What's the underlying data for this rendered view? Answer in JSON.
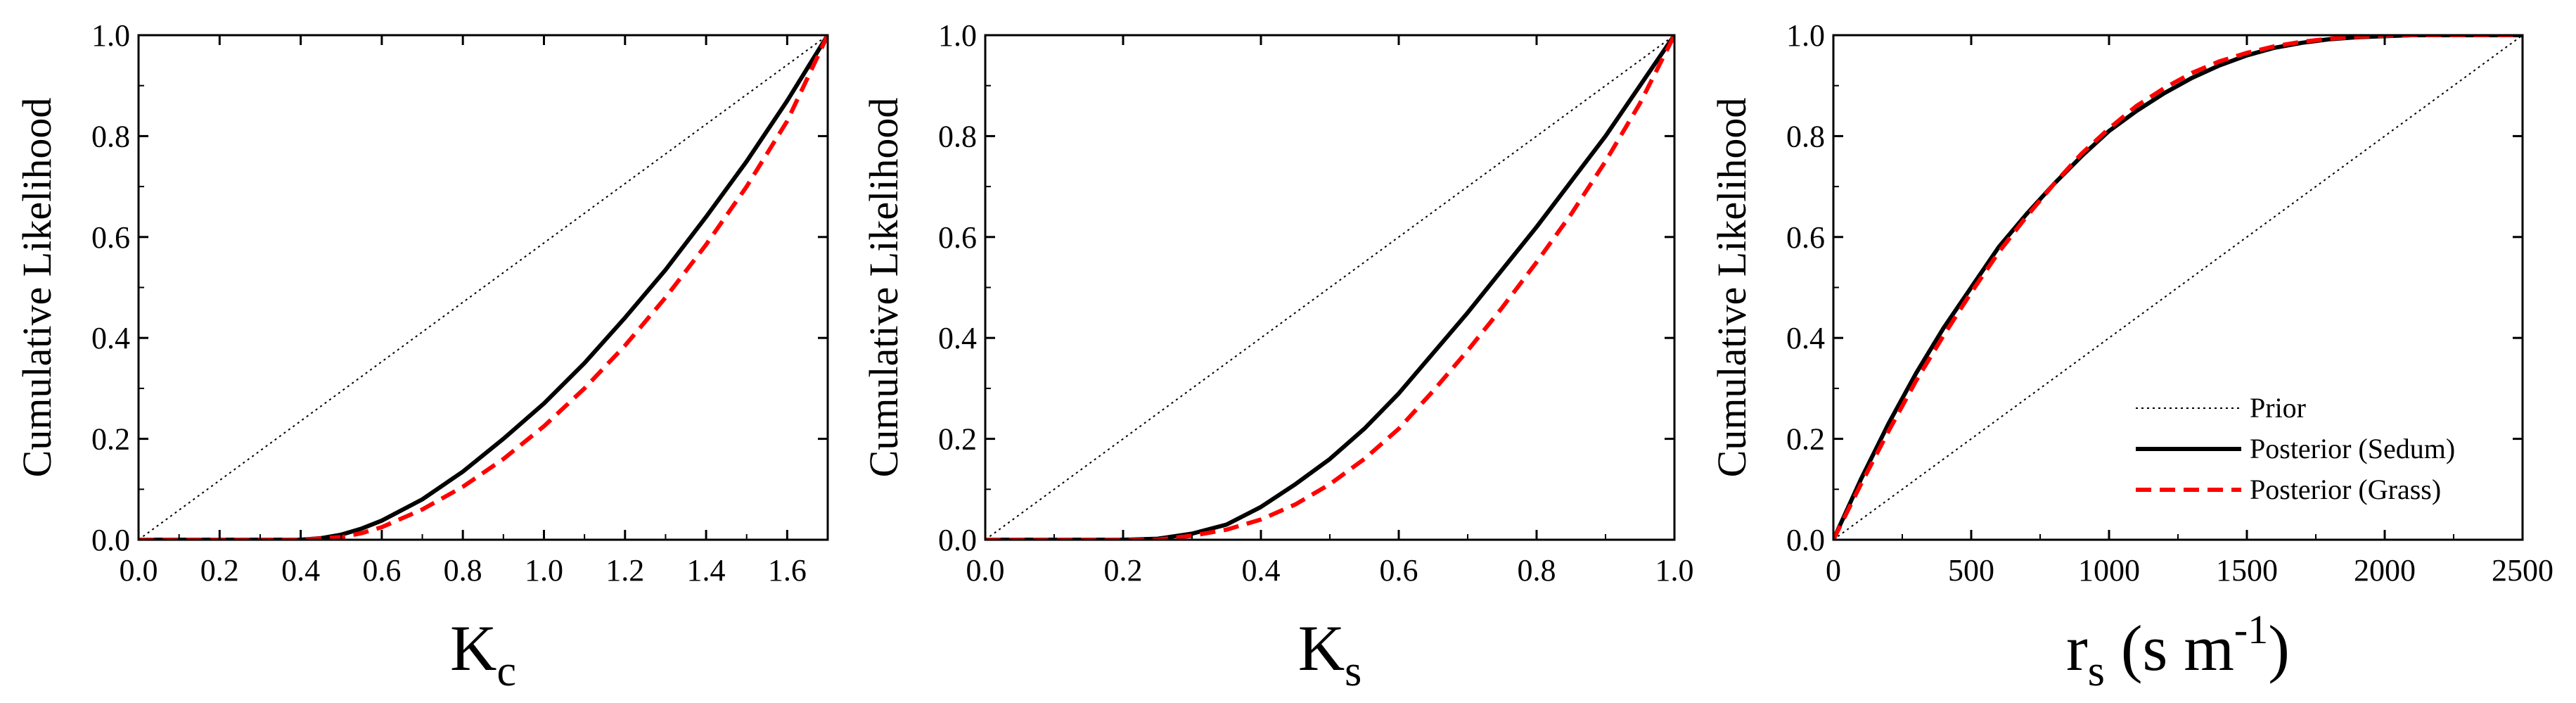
{
  "colors": {
    "prior": "#000000",
    "sedum": "#000000",
    "grass": "#ff0000",
    "background": "#ffffff"
  },
  "chart_data": [
    {
      "type": "line",
      "ylabel": "Cumulative Likelihood",
      "xlabel_main": "K",
      "xlabel_sub": "c",
      "xlim": [
        0,
        1.7
      ],
      "ylim": [
        0,
        1
      ],
      "xticks": [
        "0.0",
        "0.2",
        "0.4",
        "0.6",
        "0.8",
        "1.0",
        "1.2",
        "1.4",
        "1.6"
      ],
      "yticks": [
        "0.0",
        "0.2",
        "0.4",
        "0.6",
        "0.8",
        "1.0"
      ],
      "grid": false,
      "series": [
        {
          "name": "Prior",
          "style": "dotted",
          "x": [
            0,
            1.7
          ],
          "y": [
            0,
            1
          ]
        },
        {
          "name": "Posterior (Sedum)",
          "style": "solid",
          "x": [
            0,
            0.2,
            0.4,
            0.45,
            0.5,
            0.55,
            0.6,
            0.7,
            0.8,
            0.9,
            1.0,
            1.1,
            1.2,
            1.3,
            1.4,
            1.5,
            1.6,
            1.7
          ],
          "y": [
            0,
            0,
            0,
            0.003,
            0.01,
            0.022,
            0.038,
            0.08,
            0.135,
            0.2,
            0.27,
            0.35,
            0.44,
            0.535,
            0.64,
            0.75,
            0.87,
            1.0
          ]
        },
        {
          "name": "Posterior (Grass)",
          "style": "dashed",
          "x": [
            0,
            0.2,
            0.4,
            0.5,
            0.55,
            0.6,
            0.7,
            0.8,
            0.9,
            1.0,
            1.1,
            1.2,
            1.3,
            1.4,
            1.5,
            1.6,
            1.7
          ],
          "y": [
            0,
            0,
            0,
            0.005,
            0.013,
            0.025,
            0.06,
            0.105,
            0.16,
            0.225,
            0.3,
            0.385,
            0.48,
            0.585,
            0.7,
            0.83,
            1.0
          ]
        }
      ]
    },
    {
      "type": "line",
      "ylabel": "Cumulative Likelihood",
      "xlabel_main": "K",
      "xlabel_sub": "s",
      "xlim": [
        0,
        1
      ],
      "ylim": [
        0,
        1
      ],
      "xticks": [
        "0.0",
        "0.2",
        "0.4",
        "0.6",
        "0.8",
        "1.0"
      ],
      "yticks": [
        "0.0",
        "0.2",
        "0.4",
        "0.6",
        "0.8",
        "1.0"
      ],
      "grid": false,
      "series": [
        {
          "name": "Prior",
          "style": "dotted",
          "x": [
            0,
            1
          ],
          "y": [
            0,
            1
          ]
        },
        {
          "name": "Posterior (Sedum)",
          "style": "solid",
          "x": [
            0,
            0.2,
            0.25,
            0.3,
            0.35,
            0.4,
            0.45,
            0.5,
            0.55,
            0.6,
            0.65,
            0.7,
            0.75,
            0.8,
            0.85,
            0.9,
            0.95,
            1.0
          ],
          "y": [
            0,
            0,
            0.002,
            0.012,
            0.03,
            0.065,
            0.11,
            0.16,
            0.22,
            0.29,
            0.37,
            0.45,
            0.535,
            0.62,
            0.71,
            0.8,
            0.9,
            1.0
          ]
        },
        {
          "name": "Posterior (Grass)",
          "style": "dashed",
          "x": [
            0,
            0.25,
            0.3,
            0.35,
            0.4,
            0.45,
            0.5,
            0.55,
            0.6,
            0.65,
            0.7,
            0.75,
            0.8,
            0.85,
            0.9,
            0.95,
            1.0
          ],
          "y": [
            0,
            0,
            0.008,
            0.02,
            0.04,
            0.07,
            0.11,
            0.16,
            0.22,
            0.295,
            0.375,
            0.46,
            0.55,
            0.645,
            0.75,
            0.865,
            1.0
          ]
        }
      ]
    },
    {
      "type": "line",
      "ylabel": "Cumulative Likelihood",
      "xlabel_main": "r",
      "xlabel_sub": "s",
      "xlabel_rest": " (s m",
      "xlabel_sup": "-1",
      "xlabel_end": ")",
      "xlim": [
        0,
        2500
      ],
      "ylim": [
        0,
        1
      ],
      "xticks": [
        "0",
        "500",
        "1000",
        "1500",
        "2000",
        "2500"
      ],
      "yticks": [
        "0.0",
        "0.2",
        "0.4",
        "0.6",
        "0.8",
        "1.0"
      ],
      "grid": false,
      "legend": "bottom-right",
      "series": [
        {
          "name": "Prior",
          "style": "dotted",
          "x": [
            0,
            2500
          ],
          "y": [
            0,
            1
          ]
        },
        {
          "name": "Posterior (Sedum)",
          "style": "solid",
          "x": [
            0,
            100,
            200,
            300,
            400,
            500,
            600,
            700,
            800,
            900,
            1000,
            1100,
            1200,
            1300,
            1400,
            1500,
            1600,
            1700,
            1800,
            1900,
            2000,
            2100,
            2200,
            2500
          ],
          "y": [
            0,
            0.12,
            0.23,
            0.33,
            0.42,
            0.5,
            0.58,
            0.645,
            0.705,
            0.76,
            0.81,
            0.85,
            0.885,
            0.915,
            0.94,
            0.96,
            0.975,
            0.985,
            0.992,
            0.996,
            0.998,
            1.0,
            1.0,
            1.0
          ]
        },
        {
          "name": "Posterior (Grass)",
          "style": "dashed",
          "x": [
            0,
            100,
            200,
            300,
            400,
            500,
            600,
            700,
            800,
            900,
            1000,
            1100,
            1200,
            1300,
            1400,
            1500,
            1600,
            1700,
            1800,
            1900,
            2000,
            2100,
            2200,
            2500
          ],
          "y": [
            0,
            0.11,
            0.215,
            0.315,
            0.405,
            0.49,
            0.57,
            0.64,
            0.705,
            0.765,
            0.815,
            0.86,
            0.895,
            0.925,
            0.948,
            0.965,
            0.978,
            0.987,
            0.993,
            0.997,
            0.999,
            1.0,
            1.0,
            1.0
          ]
        }
      ]
    }
  ]
}
